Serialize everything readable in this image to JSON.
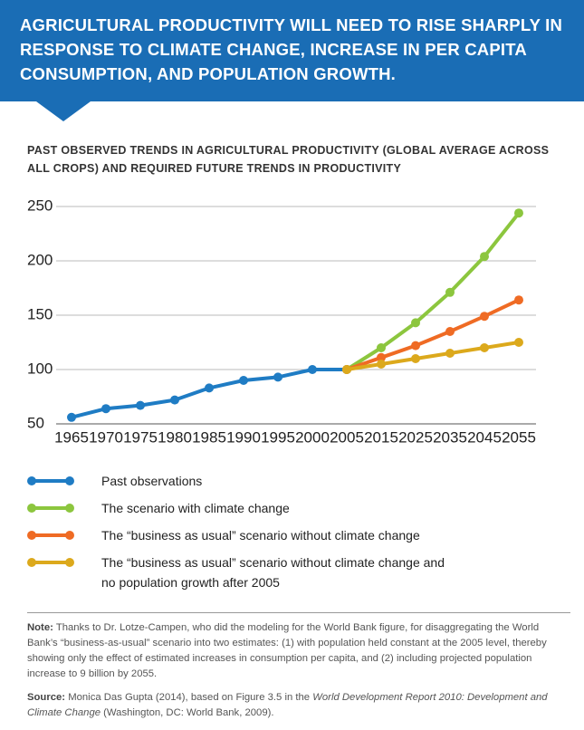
{
  "header": {
    "title": "AGRICULTURAL PRODUCTIVITY WILL NEED TO RISE SHARPLY IN RESPONSE TO CLIMATE CHANGE, INCREASE IN PER CAPITA CONSUMPTION, AND POPULATION GROWTH."
  },
  "chart_data": {
    "type": "line",
    "title": "PAST OBSERVED TRENDS IN AGRICULTURAL PRODUCTIVITY (GLOBAL AVERAGE ACROSS ALL CROPS) AND REQUIRED FUTURE TRENDS IN PRODUCTIVITY",
    "categories": [
      "1965",
      "1970",
      "1975",
      "1980",
      "1985",
      "1990",
      "1995",
      "2000",
      "2005",
      "2015",
      "2025",
      "2035",
      "2045",
      "2055"
    ],
    "series": [
      {
        "name": "Past observations",
        "color": "#1f7cc4",
        "values": [
          56,
          64,
          67,
          72,
          83,
          90,
          93,
          100,
          100,
          null,
          null,
          null,
          null,
          null
        ]
      },
      {
        "name": "The scenario with climate change",
        "color": "#8cc63e",
        "values": [
          null,
          null,
          null,
          null,
          null,
          null,
          null,
          null,
          100,
          120,
          143,
          171,
          204,
          244
        ]
      },
      {
        "name": "The “business as usual” scenario without climate change",
        "color": "#ef6b24",
        "values": [
          null,
          null,
          null,
          null,
          null,
          null,
          null,
          null,
          100,
          111,
          122,
          135,
          149,
          164
        ]
      },
      {
        "name": "The “business as usual” scenario without climate change and no population growth after 2005",
        "color": "#dca91c",
        "values": [
          null,
          null,
          null,
          null,
          null,
          null,
          null,
          null,
          100,
          105,
          110,
          115,
          120,
          125
        ]
      }
    ],
    "ylim": [
      50,
      250
    ],
    "yticks": [
      50,
      100,
      150,
      200,
      250
    ],
    "grid": true
  },
  "note": {
    "label": "Note:",
    "text": "Thanks to Dr. Lotze-Campen, who did the modeling for the World Bank figure, for disaggregating the World Bank’s “business-as-usual” scenario into two estimates: (1) with population held constant at the 2005 level, thereby showing only the effect of estimated increases in consumption per capita, and (2) including projected population increase to 9 billion by 2055."
  },
  "source": {
    "label": "Source:",
    "text_1": "Monica Das Gupta (2014), based on Figure 3.5 in the ",
    "italic": "World Development Report 2010: Development and Climate Change",
    "text_2": " (Washington, DC: World Bank, 2009)."
  }
}
